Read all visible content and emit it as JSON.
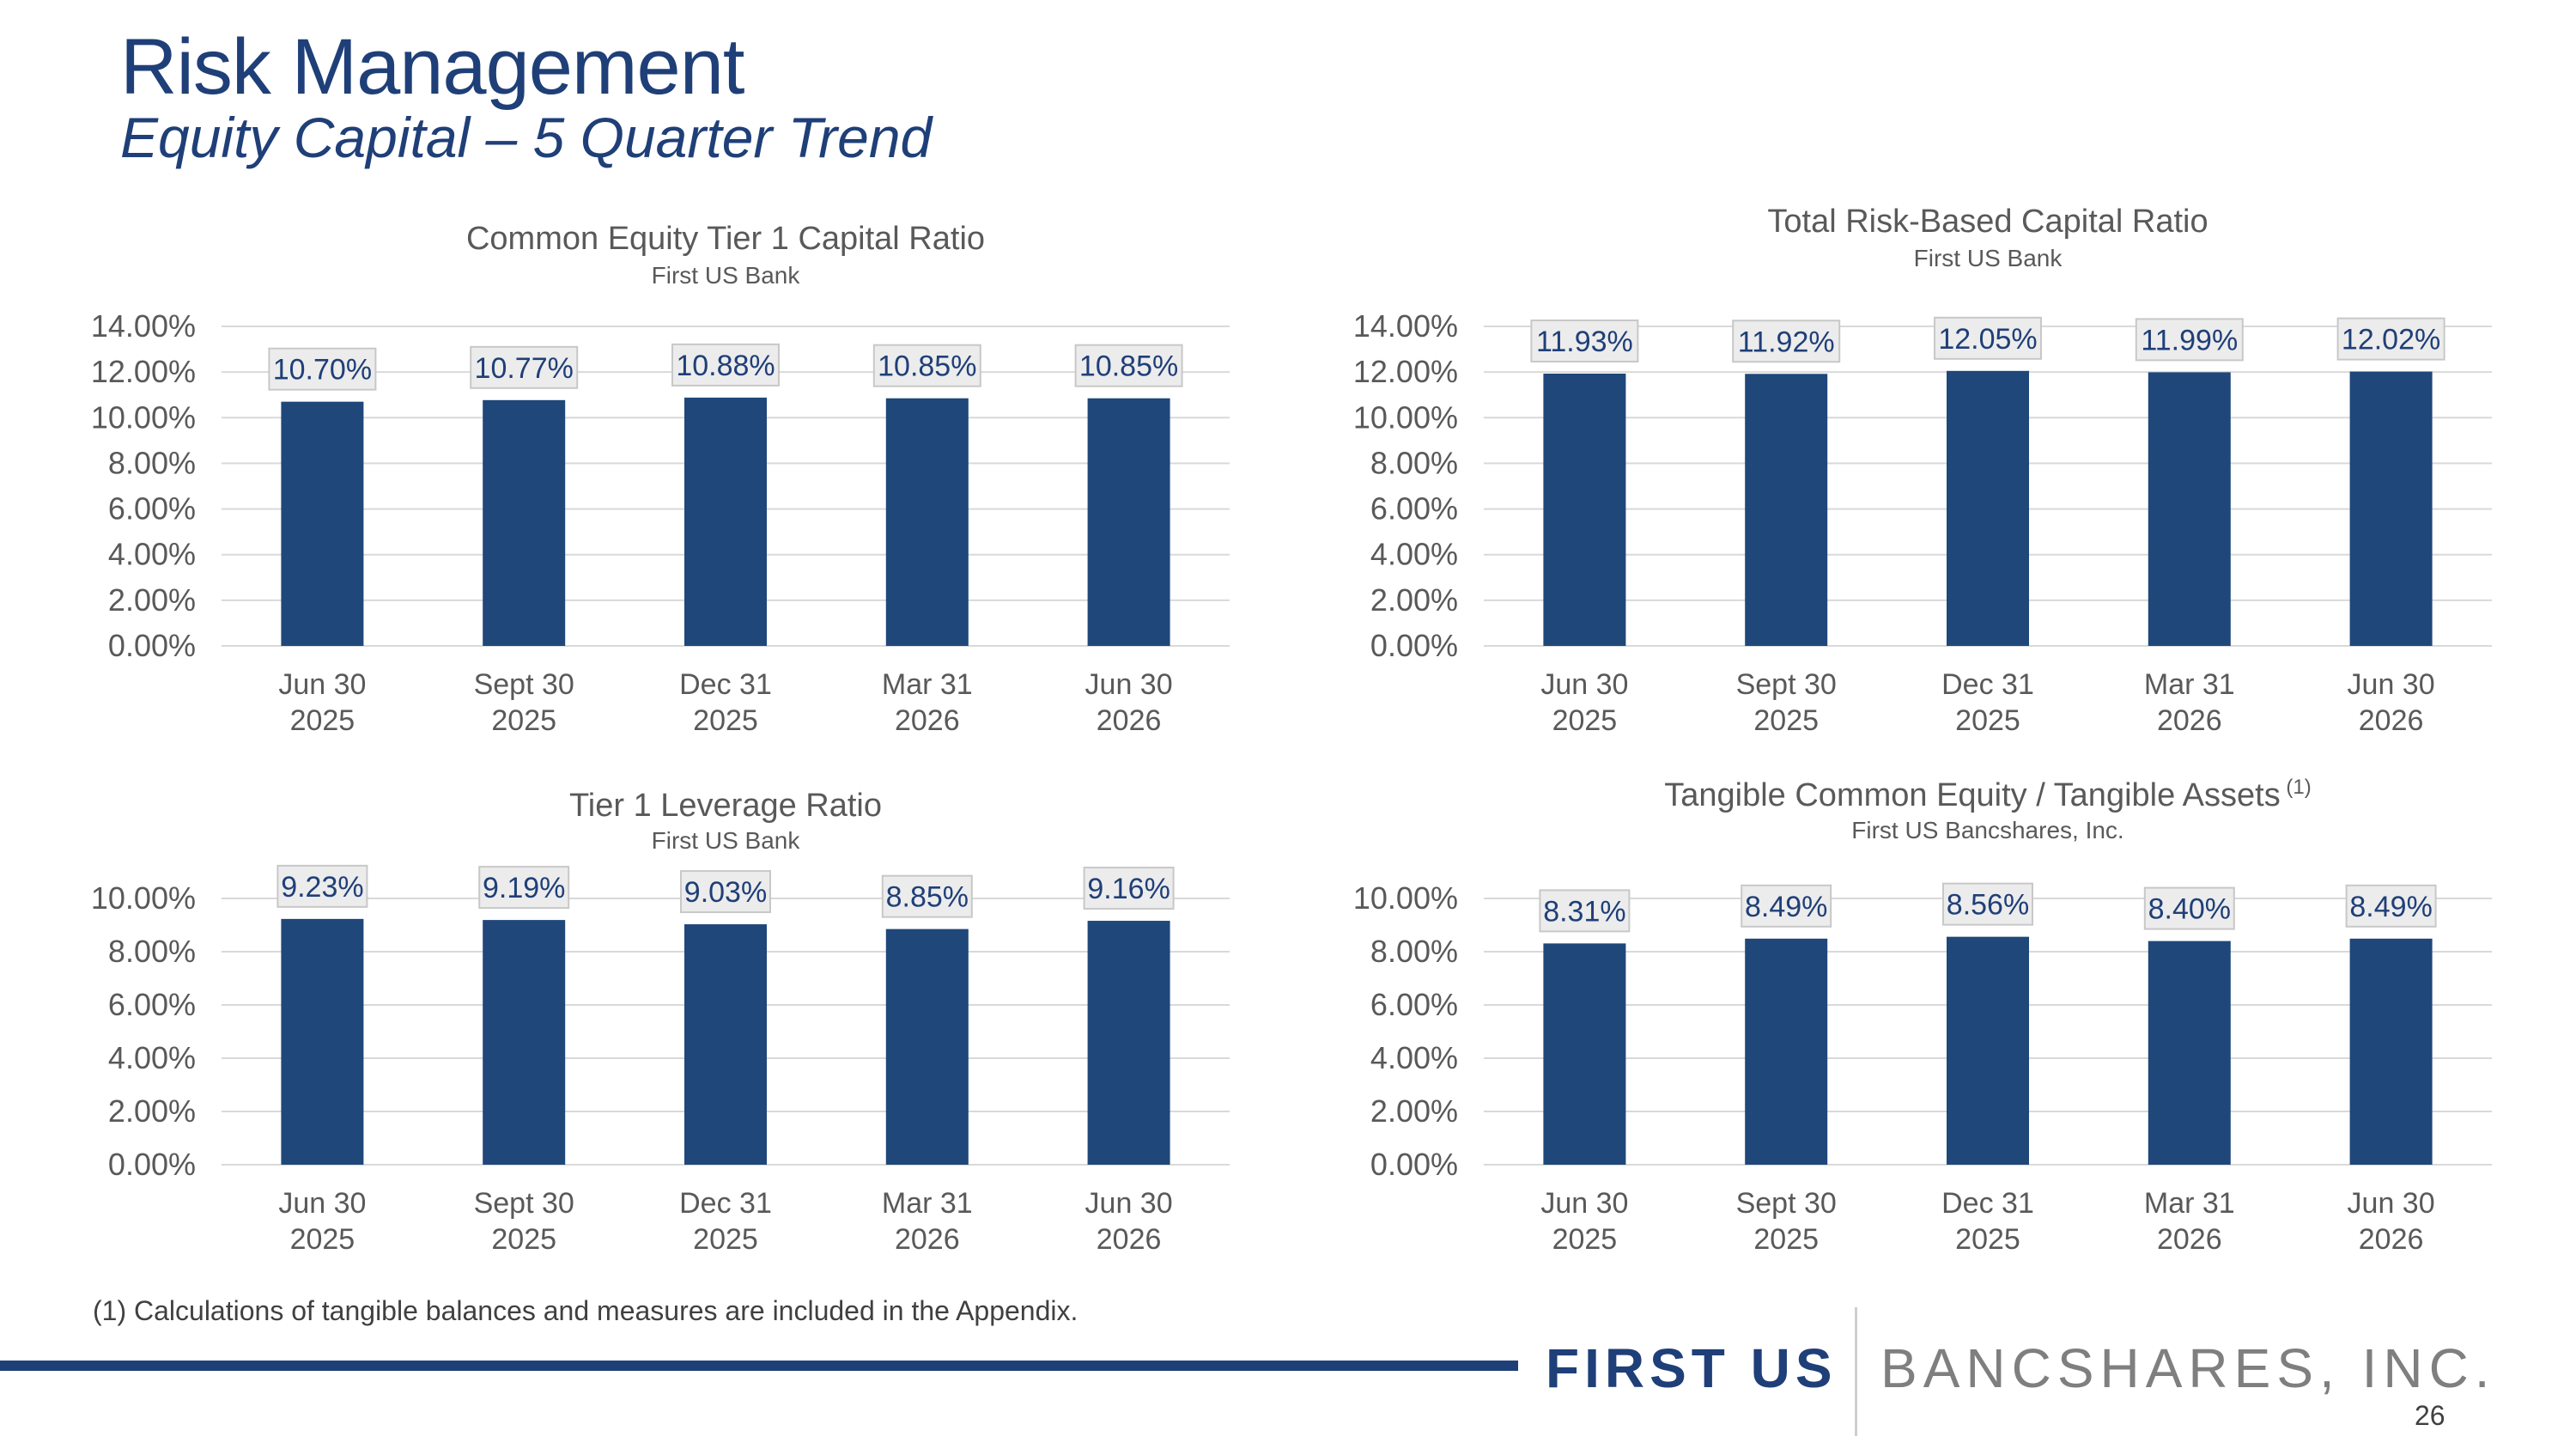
{
  "slide": {
    "title": "Risk Management",
    "subtitle": "Equity Capital – 5 Quarter Trend",
    "footnote": "(1) Calculations of tangible balances and measures are included in the Appendix.",
    "logo_first": "FIRST US",
    "logo_rest": "BANCSHARES, INC.",
    "page_number": "26"
  },
  "colors": {
    "bar": "#1f477a",
    "title": "#1f3f78",
    "label_box": "#ececec",
    "grid": "#d9d9d9"
  },
  "chart_data": [
    {
      "type": "bar",
      "title": "Common Equity Tier 1 Capital Ratio",
      "subtitle": "First US Bank",
      "title_sup": "",
      "categories": [
        [
          "Jun 30",
          "2025"
        ],
        [
          "Sept 30",
          "2025"
        ],
        [
          "Dec 31",
          "2025"
        ],
        [
          "Mar 31",
          "2026"
        ],
        [
          "Jun 30",
          "2026"
        ]
      ],
      "values": [
        10.7,
        10.77,
        10.88,
        10.85,
        10.85
      ],
      "data_labels": [
        "10.70%",
        "10.77%",
        "10.88%",
        "10.85%",
        "10.85%"
      ],
      "yticks": [
        "0.00%",
        "2.00%",
        "4.00%",
        "6.00%",
        "8.00%",
        "10.00%",
        "12.00%",
        "14.00%"
      ],
      "ylim": [
        0,
        14
      ],
      "grid": true
    },
    {
      "type": "bar",
      "title": "Total Risk-Based Capital Ratio",
      "subtitle": "First US Bank",
      "title_sup": "",
      "categories": [
        [
          "Jun 30",
          "2025"
        ],
        [
          "Sept 30",
          "2025"
        ],
        [
          "Dec 31",
          "2025"
        ],
        [
          "Mar 31",
          "2026"
        ],
        [
          "Jun 30",
          "2026"
        ]
      ],
      "values": [
        11.93,
        11.92,
        12.05,
        11.99,
        12.02
      ],
      "data_labels": [
        "11.93%",
        "11.92%",
        "12.05%",
        "11.99%",
        "12.02%"
      ],
      "yticks": [
        "0.00%",
        "2.00%",
        "4.00%",
        "6.00%",
        "8.00%",
        "10.00%",
        "12.00%",
        "14.00%"
      ],
      "ylim": [
        0,
        14
      ],
      "grid": true
    },
    {
      "type": "bar",
      "title": "Tier 1 Leverage Ratio",
      "subtitle": "First US Bank",
      "title_sup": "",
      "categories": [
        [
          "Jun 30",
          "2025"
        ],
        [
          "Sept 30",
          "2025"
        ],
        [
          "Dec 31",
          "2025"
        ],
        [
          "Mar 31",
          "2026"
        ],
        [
          "Jun 30",
          "2026"
        ]
      ],
      "values": [
        9.23,
        9.19,
        9.03,
        8.85,
        9.16
      ],
      "data_labels": [
        "9.23%",
        "9.19%",
        "9.03%",
        "8.85%",
        "9.16%"
      ],
      "yticks": [
        "0.00%",
        "2.00%",
        "4.00%",
        "6.00%",
        "8.00%",
        "10.00%"
      ],
      "ylim": [
        0,
        10
      ],
      "grid": true
    },
    {
      "type": "bar",
      "title": "Tangible Common Equity / Tangible Assets",
      "subtitle": "First US Bancshares, Inc.",
      "title_sup": "(1)",
      "categories": [
        [
          "Jun 30",
          "2025"
        ],
        [
          "Sept 30",
          "2025"
        ],
        [
          "Dec 31",
          "2025"
        ],
        [
          "Mar 31",
          "2026"
        ],
        [
          "Jun 30",
          "2026"
        ]
      ],
      "values": [
        8.31,
        8.49,
        8.56,
        8.4,
        8.49
      ],
      "data_labels": [
        "8.31%",
        "8.49%",
        "8.56%",
        "8.40%",
        "8.49%"
      ],
      "yticks": [
        "0.00%",
        "2.00%",
        "4.00%",
        "6.00%",
        "8.00%",
        "10.00%"
      ],
      "ylim": [
        0,
        10
      ],
      "grid": true
    }
  ]
}
